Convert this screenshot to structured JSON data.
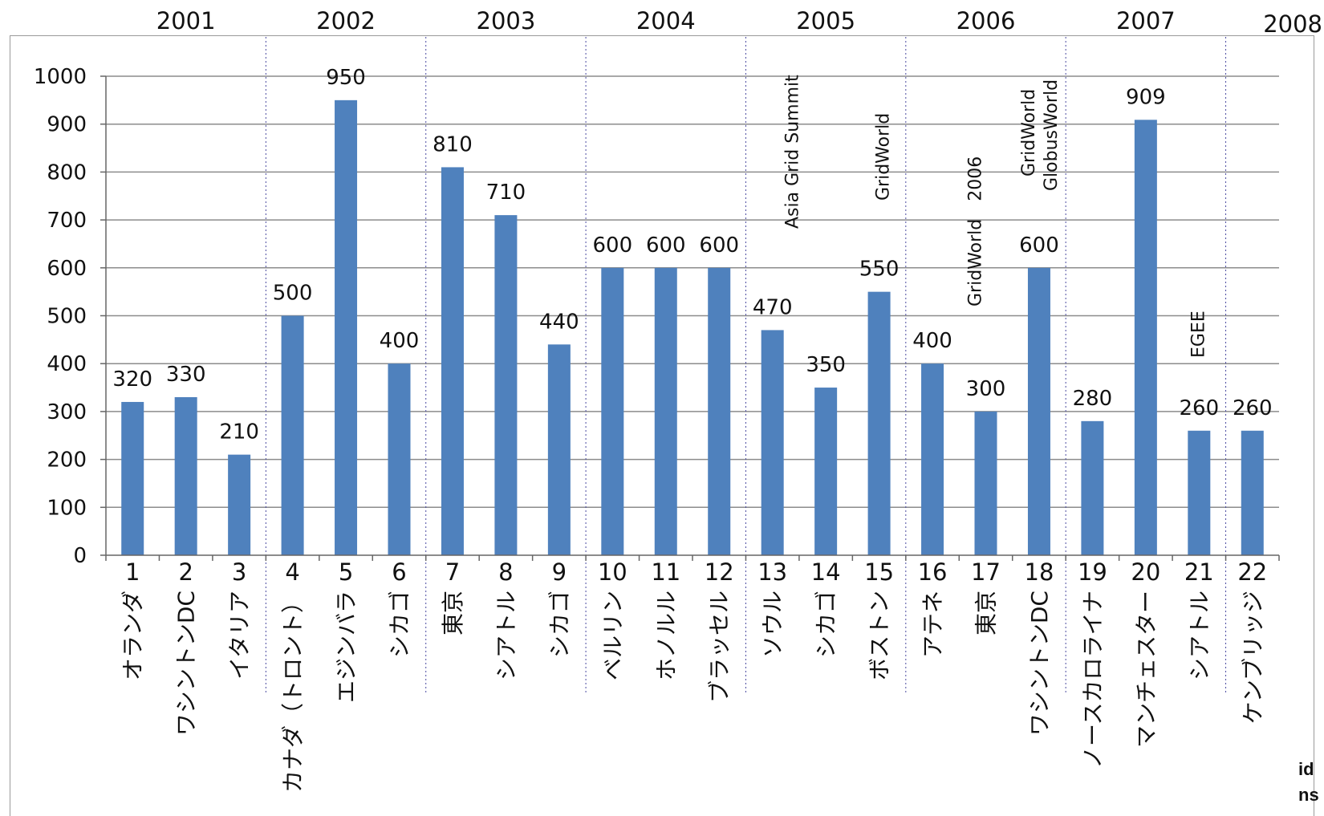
{
  "chart_data": {
    "type": "bar",
    "categories": [
      "1",
      "2",
      "3",
      "4",
      "5",
      "6",
      "7",
      "8",
      "9",
      "10",
      "11",
      "12",
      "13",
      "14",
      "15",
      "16",
      "17",
      "18",
      "19",
      "20",
      "21",
      "22"
    ],
    "city_labels": [
      "オランダ",
      "ワシントンDC",
      "イタリア",
      "カナダ（トロント）",
      "エジンバラ",
      "シカゴ",
      "東京",
      "シアトル",
      "シカゴ",
      "ベルリン",
      "ホノルル",
      "ブラッセル",
      "ソウル",
      "シカゴ",
      "ボストン",
      "アテネ",
      "東京",
      "ワシントンDC",
      "ノースカロライナ",
      "マンチェスター",
      "シアトル",
      "ケンブリッジ"
    ],
    "values": [
      320,
      330,
      210,
      500,
      950,
      400,
      810,
      710,
      440,
      600,
      600,
      600,
      470,
      350,
      550,
      400,
      300,
      600,
      280,
      909,
      260,
      260
    ],
    "value_labels": [
      "320",
      "330",
      "210",
      "500",
      "950",
      "400",
      "810",
      "710",
      "440",
      "600",
      "600",
      "600",
      "470",
      "350",
      "550",
      "400",
      "300",
      "600",
      "280",
      "909",
      "260",
      "260"
    ],
    "ylim": [
      0,
      1000
    ],
    "yticks": [
      "0",
      "100",
      "200",
      "300",
      "400",
      "500",
      "600",
      "700",
      "800",
      "900",
      "1000"
    ],
    "years": [
      {
        "label": "2001",
        "start": 1,
        "end": 3
      },
      {
        "label": "2002",
        "start": 4,
        "end": 6
      },
      {
        "label": "2003",
        "start": 7,
        "end": 9
      },
      {
        "label": "2004",
        "start": 10,
        "end": 12
      },
      {
        "label": "2005",
        "start": 13,
        "end": 15
      },
      {
        "label": "2006",
        "start": 16,
        "end": 18
      },
      {
        "label": "2007",
        "start": 19,
        "end": 21
      },
      {
        "label": "2008",
        "start": 22,
        "end": 22
      }
    ],
    "annotations": [
      {
        "bar": 13,
        "text": "Asia Grid Summit"
      },
      {
        "bar": 15,
        "text": "GridWorld"
      },
      {
        "bar": 17,
        "text": "GridWorld　2006"
      },
      {
        "bar": 18,
        "text": "GridWorld"
      },
      {
        "bar": 18,
        "text": "GlobusWorld"
      },
      {
        "bar": 21,
        "text": "EGEE"
      }
    ],
    "grid": true,
    "bar_color": "#4f81bd"
  },
  "corner_texts": [
    "id",
    "ns"
  ]
}
